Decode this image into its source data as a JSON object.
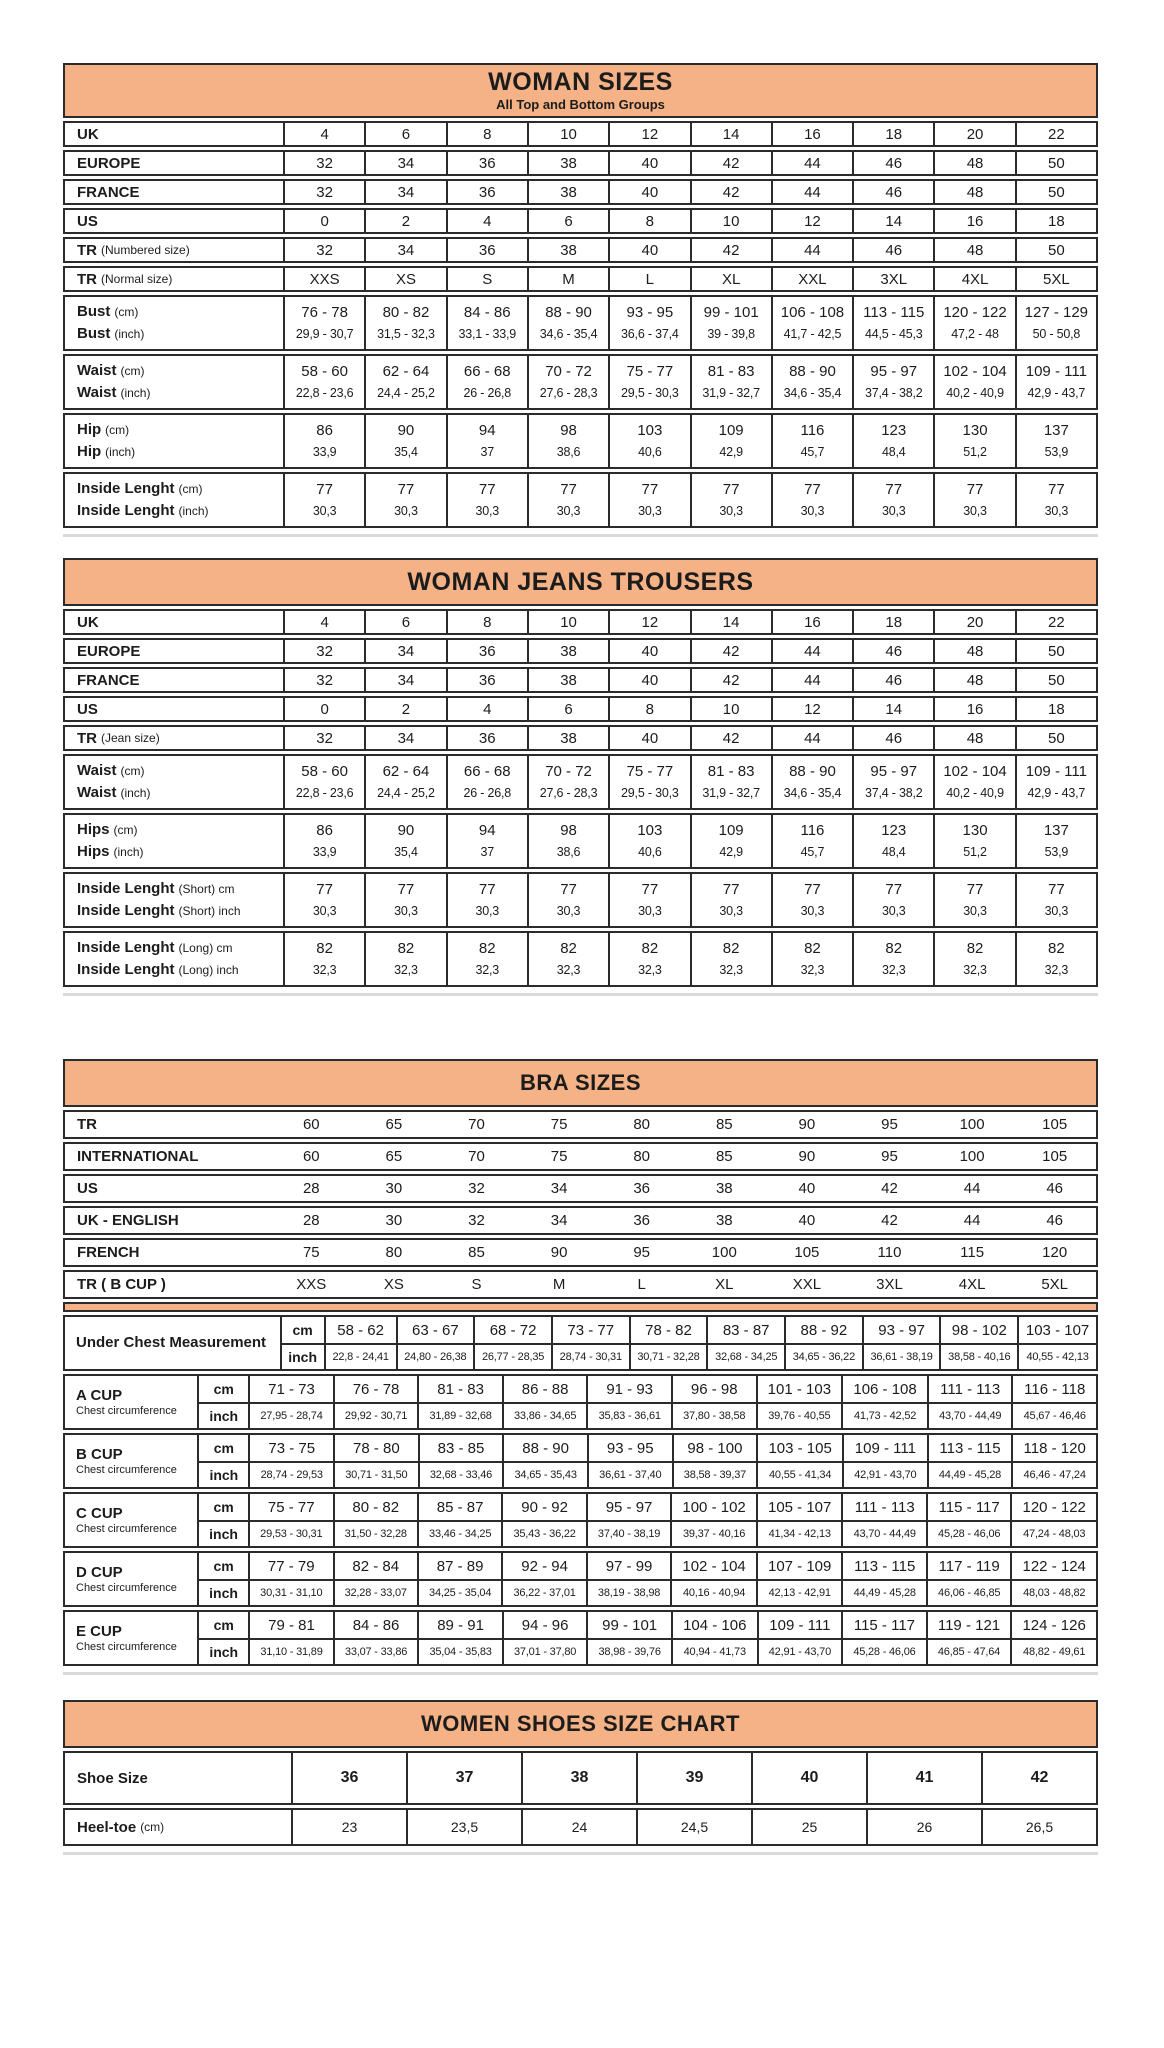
{
  "accent_color": "#f5b286",
  "border_color": "#2b2b2b",
  "tables": {
    "woman_sizes": {
      "title": "WOMAN SIZES",
      "subtitle": "All Top and Bottom Groups",
      "rows": [
        {
          "kind": "single",
          "label": "UK",
          "suffix": "",
          "values": [
            "4",
            "6",
            "8",
            "10",
            "12",
            "14",
            "16",
            "18",
            "20",
            "22"
          ]
        },
        {
          "kind": "single",
          "label": "EUROPE",
          "suffix": "",
          "values": [
            "32",
            "34",
            "36",
            "38",
            "40",
            "42",
            "44",
            "46",
            "48",
            "50"
          ]
        },
        {
          "kind": "single",
          "label": "FRANCE",
          "suffix": "",
          "values": [
            "32",
            "34",
            "36",
            "38",
            "40",
            "42",
            "44",
            "46",
            "48",
            "50"
          ]
        },
        {
          "kind": "single",
          "label": "US",
          "suffix": "",
          "values": [
            "0",
            "2",
            "4",
            "6",
            "8",
            "10",
            "12",
            "14",
            "16",
            "18"
          ]
        },
        {
          "kind": "single",
          "label": "TR",
          "suffix": "(Numbered size)",
          "values": [
            "32",
            "34",
            "36",
            "38",
            "40",
            "42",
            "44",
            "46",
            "48",
            "50"
          ]
        },
        {
          "kind": "single",
          "label": "TR",
          "suffix": "(Normal size)",
          "values": [
            "XXS",
            "XS",
            "S",
            "M",
            "L",
            "XL",
            "XXL",
            "3XL",
            "4XL",
            "5XL"
          ]
        },
        {
          "kind": "pair",
          "top": {
            "label": "Bust",
            "suffix": "(cm)",
            "values": [
              "76 - 78",
              "80 - 82",
              "84 - 86",
              "88 - 90",
              "93 - 95",
              "99 - 101",
              "106 - 108",
              "113 - 115",
              "120 - 122",
              "127 - 129"
            ]
          },
          "bottom": {
            "label": "Bust",
            "suffix": "(inch)",
            "values": [
              "29,9 - 30,7",
              "31,5 - 32,3",
              "33,1 - 33,9",
              "34,6 - 35,4",
              "36,6 - 37,4",
              "39 - 39,8",
              "41,7 - 42,5",
              "44,5 - 45,3",
              "47,2 - 48",
              "50 - 50,8"
            ]
          }
        },
        {
          "kind": "pair",
          "top": {
            "label": "Waist",
            "suffix": "(cm)",
            "values": [
              "58 - 60",
              "62 - 64",
              "66 - 68",
              "70 - 72",
              "75 - 77",
              "81 - 83",
              "88 - 90",
              "95 - 97",
              "102 - 104",
              "109 - 111"
            ]
          },
          "bottom": {
            "label": "Waist",
            "suffix": "(inch)",
            "values": [
              "22,8 - 23,6",
              "24,4 - 25,2",
              "26 - 26,8",
              "27,6 - 28,3",
              "29,5 - 30,3",
              "31,9 - 32,7",
              "34,6 - 35,4",
              "37,4 - 38,2",
              "40,2 - 40,9",
              "42,9 - 43,7"
            ]
          }
        },
        {
          "kind": "pair",
          "top": {
            "label": "Hip",
            "suffix": "(cm)",
            "values": [
              "86",
              "90",
              "94",
              "98",
              "103",
              "109",
              "116",
              "123",
              "130",
              "137"
            ]
          },
          "bottom": {
            "label": "Hip",
            "suffix": "(inch)",
            "values": [
              "33,9",
              "35,4",
              "37",
              "38,6",
              "40,6",
              "42,9",
              "45,7",
              "48,4",
              "51,2",
              "53,9"
            ]
          }
        },
        {
          "kind": "pair",
          "top": {
            "label": "Inside Lenght",
            "suffix": "(cm)",
            "values": [
              "77",
              "77",
              "77",
              "77",
              "77",
              "77",
              "77",
              "77",
              "77",
              "77"
            ]
          },
          "bottom": {
            "label": "Inside Lenght",
            "suffix": "(inch)",
            "values": [
              "30,3",
              "30,3",
              "30,3",
              "30,3",
              "30,3",
              "30,3",
              "30,3",
              "30,3",
              "30,3",
              "30,3"
            ]
          }
        }
      ]
    },
    "jeans": {
      "title": "WOMAN JEANS TROUSERS",
      "rows": [
        {
          "kind": "single",
          "label": "UK",
          "suffix": "",
          "values": [
            "4",
            "6",
            "8",
            "10",
            "12",
            "14",
            "16",
            "18",
            "20",
            "22"
          ]
        },
        {
          "kind": "single",
          "label": "EUROPE",
          "suffix": "",
          "values": [
            "32",
            "34",
            "36",
            "38",
            "40",
            "42",
            "44",
            "46",
            "48",
            "50"
          ]
        },
        {
          "kind": "single",
          "label": "FRANCE",
          "suffix": "",
          "values": [
            "32",
            "34",
            "36",
            "38",
            "40",
            "42",
            "44",
            "46",
            "48",
            "50"
          ]
        },
        {
          "kind": "single",
          "label": "US",
          "suffix": "",
          "values": [
            "0",
            "2",
            "4",
            "6",
            "8",
            "10",
            "12",
            "14",
            "16",
            "18"
          ]
        },
        {
          "kind": "single",
          "label": "TR",
          "suffix": "(Jean size)",
          "values": [
            "32",
            "34",
            "36",
            "38",
            "40",
            "42",
            "44",
            "46",
            "48",
            "50"
          ]
        },
        {
          "kind": "pair",
          "top": {
            "label": "Waist",
            "suffix": "(cm)",
            "values": [
              "58 - 60",
              "62 - 64",
              "66 - 68",
              "70 - 72",
              "75 - 77",
              "81 - 83",
              "88 - 90",
              "95 - 97",
              "102 - 104",
              "109 - 111"
            ]
          },
          "bottom": {
            "label": "Waist",
            "suffix": "(inch)",
            "values": [
              "22,8 - 23,6",
              "24,4 - 25,2",
              "26 - 26,8",
              "27,6 - 28,3",
              "29,5 - 30,3",
              "31,9 - 32,7",
              "34,6 - 35,4",
              "37,4 - 38,2",
              "40,2 - 40,9",
              "42,9 - 43,7"
            ]
          }
        },
        {
          "kind": "pair",
          "top": {
            "label": "Hips",
            "suffix": "(cm)",
            "values": [
              "86",
              "90",
              "94",
              "98",
              "103",
              "109",
              "116",
              "123",
              "130",
              "137"
            ]
          },
          "bottom": {
            "label": "Hips",
            "suffix": "(inch)",
            "values": [
              "33,9",
              "35,4",
              "37",
              "38,6",
              "40,6",
              "42,9",
              "45,7",
              "48,4",
              "51,2",
              "53,9"
            ]
          }
        },
        {
          "kind": "pair",
          "top": {
            "label": "Inside Lenght",
            "suffix": "(Short) cm",
            "values": [
              "77",
              "77",
              "77",
              "77",
              "77",
              "77",
              "77",
              "77",
              "77",
              "77"
            ]
          },
          "bottom": {
            "label": "Inside Lenght",
            "suffix": "(Short) inch",
            "values": [
              "30,3",
              "30,3",
              "30,3",
              "30,3",
              "30,3",
              "30,3",
              "30,3",
              "30,3",
              "30,3",
              "30,3"
            ]
          }
        },
        {
          "kind": "pair",
          "top": {
            "label": "Inside Lenght",
            "suffix": "(Long) cm",
            "values": [
              "82",
              "82",
              "82",
              "82",
              "82",
              "82",
              "82",
              "82",
              "82",
              "82"
            ]
          },
          "bottom": {
            "label": "Inside Lenght",
            "suffix": "(Long) inch",
            "values": [
              "32,3",
              "32,3",
              "32,3",
              "32,3",
              "32,3",
              "32,3",
              "32,3",
              "32,3",
              "32,3",
              "32,3"
            ]
          }
        }
      ]
    },
    "bra": {
      "title": "BRA SIZES",
      "top_rows": [
        {
          "label": "TR",
          "values": [
            "60",
            "65",
            "70",
            "75",
            "80",
            "85",
            "90",
            "95",
            "100",
            "105"
          ]
        },
        {
          "label": "INTERNATIONAL",
          "values": [
            "60",
            "65",
            "70",
            "75",
            "80",
            "85",
            "90",
            "95",
            "100",
            "105"
          ]
        },
        {
          "label": "US",
          "values": [
            "28",
            "30",
            "32",
            "34",
            "36",
            "38",
            "40",
            "42",
            "44",
            "46"
          ]
        },
        {
          "label": "UK - ENGLISH",
          "values": [
            "28",
            "30",
            "32",
            "34",
            "36",
            "38",
            "40",
            "42",
            "44",
            "46"
          ]
        },
        {
          "label": "FRENCH",
          "values": [
            "75",
            "80",
            "85",
            "90",
            "95",
            "100",
            "105",
            "110",
            "115",
            "120"
          ]
        },
        {
          "label": "TR ( B CUP )",
          "values": [
            "XXS",
            "XS",
            "S",
            "M",
            "L",
            "XL",
            "XXL",
            "3XL",
            "4XL",
            "5XL"
          ]
        }
      ],
      "unit_cm": "cm",
      "unit_inch": "inch",
      "groups": [
        {
          "label": "Under Chest Measurement",
          "sub": "",
          "cm": [
            "58 - 62",
            "63 - 67",
            "68 - 72",
            "73 - 77",
            "78 - 82",
            "83 - 87",
            "88 - 92",
            "93 - 97",
            "98 - 102",
            "103 - 107"
          ],
          "inch": [
            "22,8 - 24,41",
            "24,80 - 26,38",
            "26,77 - 28,35",
            "28,74 - 30,31",
            "30,71 - 32,28",
            "32,68 - 34,25",
            "34,65 - 36,22",
            "36,61 - 38,19",
            "38,58 - 40,16",
            "40,55 - 42,13"
          ]
        },
        {
          "label": "A CUP",
          "sub": "Chest circumference",
          "cm": [
            "71 - 73",
            "76 - 78",
            "81 - 83",
            "86 - 88",
            "91 - 93",
            "96 - 98",
            "101 - 103",
            "106 - 108",
            "111 - 113",
            "116 - 118"
          ],
          "inch": [
            "27,95 - 28,74",
            "29,92 - 30,71",
            "31,89 - 32,68",
            "33,86 - 34,65",
            "35,83 - 36,61",
            "37,80 - 38,58",
            "39,76 - 40,55",
            "41,73 - 42,52",
            "43,70 - 44,49",
            "45,67 - 46,46"
          ]
        },
        {
          "label": "B CUP",
          "sub": "Chest circumference",
          "cm": [
            "73 - 75",
            "78 - 80",
            "83 - 85",
            "88 - 90",
            "93 - 95",
            "98 - 100",
            "103 - 105",
            "109 - 111",
            "113 - 115",
            "118 - 120"
          ],
          "inch": [
            "28,74 - 29,53",
            "30,71 - 31,50",
            "32,68 - 33,46",
            "34,65 - 35,43",
            "36,61 - 37,40",
            "38,58 - 39,37",
            "40,55 - 41,34",
            "42,91 - 43,70",
            "44,49 - 45,28",
            "46,46 - 47,24"
          ]
        },
        {
          "label": "C CUP",
          "sub": "Chest circumference",
          "cm": [
            "75 - 77",
            "80 - 82",
            "85 - 87",
            "90 - 92",
            "95 - 97",
            "100 - 102",
            "105 - 107",
            "111 - 113",
            "115 - 117",
            "120 - 122"
          ],
          "inch": [
            "29,53 - 30,31",
            "31,50 - 32,28",
            "33,46 - 34,25",
            "35,43 - 36,22",
            "37,40 - 38,19",
            "39,37 - 40,16",
            "41,34 - 42,13",
            "43,70 - 44,49",
            "45,28 - 46,06",
            "47,24 - 48,03"
          ]
        },
        {
          "label": "D CUP",
          "sub": "Chest circumference",
          "cm": [
            "77 - 79",
            "82 - 84",
            "87 - 89",
            "92 - 94",
            "97 - 99",
            "102 - 104",
            "107 - 109",
            "113 - 115",
            "117 - 119",
            "122 - 124"
          ],
          "inch": [
            "30,31 - 31,10",
            "32,28 - 33,07",
            "34,25 - 35,04",
            "36,22 - 37,01",
            "38,19 - 38,98",
            "40,16 - 40,94",
            "42,13 - 42,91",
            "44,49 - 45,28",
            "46,06 - 46,85",
            "48,03 - 48,82"
          ]
        },
        {
          "label": "E CUP",
          "sub": "Chest circumference",
          "cm": [
            "79 - 81",
            "84 - 86",
            "89 - 91",
            "94 - 96",
            "99 - 101",
            "104 - 106",
            "109 - 111",
            "115 - 117",
            "119 - 121",
            "124 - 126"
          ],
          "inch": [
            "31,10 - 31,89",
            "33,07 - 33,86",
            "35,04 - 35,83",
            "37,01 - 37,80",
            "38,98 - 39,76",
            "40,94 - 41,73",
            "42,91 - 43,70",
            "45,28 - 46,06",
            "46,85 - 47,64",
            "48,82 - 49,61"
          ]
        }
      ]
    },
    "shoes": {
      "title": "WOMEN SHOES SIZE CHART",
      "rows": [
        {
          "label": "Shoe Size",
          "suffix": "",
          "bold_values": true,
          "values": [
            "36",
            "37",
            "38",
            "39",
            "40",
            "41",
            "42"
          ]
        },
        {
          "label": "Heel-toe",
          "suffix": "(cm)",
          "bold_values": false,
          "values": [
            "23",
            "23,5",
            "24",
            "24,5",
            "25",
            "26",
            "26,5"
          ]
        }
      ]
    }
  }
}
